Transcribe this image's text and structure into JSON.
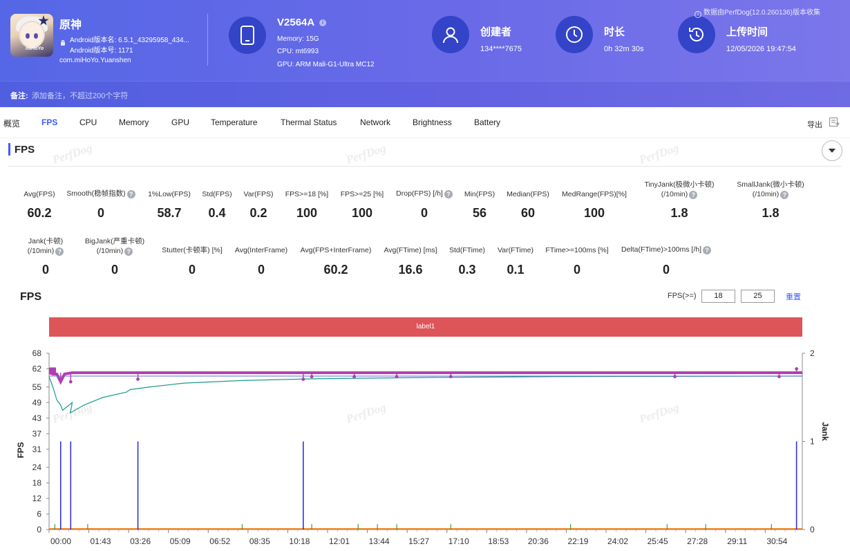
{
  "app": {
    "name": "原神",
    "android_version_name": "Android版本名: 6.5.1_43295958_434...",
    "android_version_code": "Android版本号: 1171",
    "package": "com.miHoYo.Yuanshen",
    "icon_brand": "miHoYo"
  },
  "device": {
    "name": "V2564A",
    "memory": "Memory: 15G",
    "cpu": "CPU: mt6993",
    "gpu": "GPU: ARM Mali-G1-Ultra MC12"
  },
  "creator": {
    "label": "创建者",
    "value": "134****7675"
  },
  "duration": {
    "label": "时长",
    "value": "0h 32m 30s"
  },
  "upload": {
    "label": "上传时间",
    "value": "12/05/2026 19:47:54"
  },
  "source_note": "数据由PerfDog(12.0.260136)版本收集",
  "remark": {
    "label": "备注:",
    "placeholder": "添加备注，不超过200个字符"
  },
  "tabs": [
    "概览",
    "FPS",
    "CPU",
    "Memory",
    "GPU",
    "Temperature",
    "Thermal Status",
    "Network",
    "Brightness",
    "Battery"
  ],
  "active_tab": "FPS",
  "export_label": "导出",
  "section_title": "FPS",
  "watermark": "PerfDog",
  "metrics_row1": [
    {
      "label": "Avg(FPS)",
      "value": "60.2"
    },
    {
      "label": "Smooth(稳帧指数)",
      "value": "0"
    },
    {
      "label": "1%Low(FPS)",
      "value": "58.7"
    },
    {
      "label": "Std(FPS)",
      "value": "0.4"
    },
    {
      "label": "Var(FPS)",
      "value": "0.2"
    },
    {
      "label": "FPS>=18 [%]",
      "value": "100"
    },
    {
      "label": "FPS>=25 [%]",
      "value": "100"
    },
    {
      "label": "Drop(FPS) [/h]",
      "value": "0"
    },
    {
      "label": "Min(FPS)",
      "value": "56"
    },
    {
      "label": "Median(FPS)",
      "value": "60"
    },
    {
      "label": "MedRange(FPS)[%]",
      "value": "100"
    },
    {
      "label": "TinyJank(极微小卡顿)",
      "label2": "(/10min)",
      "value": "1.8"
    },
    {
      "label": "SmallJank(微小卡顿)",
      "label2": "(/10min)",
      "value": "1.8"
    }
  ],
  "metrics_row2": [
    {
      "label": "Jank(卡顿)",
      "label2": "(/10min)",
      "value": "0"
    },
    {
      "label": "BigJank(严重卡顿)",
      "label2": "(/10min)",
      "value": "0"
    },
    {
      "label": "Stutter(卡顿率) [%]",
      "value": "0"
    },
    {
      "label": "Avg(InterFrame)",
      "value": "0"
    },
    {
      "label": "Avg(FPS+InterFrame)",
      "value": "60.2"
    },
    {
      "label": "Avg(FTime) [ms]",
      "value": "16.6"
    },
    {
      "label": "Std(FTime)",
      "value": "0.3"
    },
    {
      "label": "Var(FTime)",
      "value": "0.1"
    },
    {
      "label": "FTime>=100ms [%]",
      "value": "0"
    },
    {
      "label": "Delta(FTime)>100ms [/h]",
      "value": "0"
    }
  ],
  "chart_controls": {
    "title": "FPS",
    "threshold_label": "FPS(>=)",
    "threshold1": "18",
    "threshold2": "25",
    "reset_label": "重置",
    "label_band": "label1"
  },
  "colors": {
    "fps": "#b03fb0",
    "avg_fps": "#1a9a8a",
    "jank": "#3030e0",
    "small_jank": "#2fa02f",
    "baseline": "#f08020",
    "label_band": "#dd5559"
  },
  "chart_data": {
    "type": "line",
    "y_label": "FPS",
    "y2_label": "Jank",
    "y_ticks": [
      0,
      6,
      12,
      18,
      24,
      31,
      37,
      43,
      49,
      55,
      62,
      68
    ],
    "y_range": [
      0,
      68
    ],
    "y2_ticks": [
      0,
      1,
      2
    ],
    "y2_range": [
      0,
      2
    ],
    "x_range_seconds": [
      0,
      1950
    ],
    "x_tick_labels": [
      "00:00",
      "01:43",
      "03:26",
      "05:09",
      "06:52",
      "08:35",
      "10:18",
      "12:01",
      "13:44",
      "15:27",
      "17:10",
      "18:53",
      "20:36",
      "22:19",
      "24:02",
      "25:45",
      "27:28",
      "29:11",
      "30:54"
    ],
    "series": [
      {
        "key": "fps",
        "x_seconds": [
          0,
          10,
          20,
          30,
          40,
          60,
          90,
          120,
          200,
          400,
          700,
          1000,
          1300,
          1600,
          1900,
          1950
        ],
        "values": [
          60.5,
          60,
          60,
          57,
          60,
          60.5,
          60.5,
          60.5,
          60.5,
          60.5,
          60.5,
          60.5,
          60.5,
          60.5,
          60.5,
          60.5
        ]
      },
      {
        "key": "avg_fps",
        "x_seconds": [
          0,
          10,
          20,
          30,
          35,
          60,
          55,
          90,
          140,
          200,
          210,
          260,
          350,
          500,
          700,
          1000,
          1300,
          1600,
          1950
        ],
        "values": [
          59,
          55,
          50,
          48,
          46,
          49,
          45,
          48,
          51,
          53,
          54,
          55,
          56.5,
          57.5,
          58.2,
          58.7,
          59,
          59.1,
          59.2
        ]
      },
      {
        "key": "jank",
        "x_seconds": [
          30,
          56,
          230,
          658,
          1935
        ],
        "values": [
          1,
          1,
          1,
          1,
          1
        ]
      },
      {
        "key": "small_jank",
        "x_seconds": [
          15,
          30,
          100,
          230,
          500,
          680,
          800,
          850,
          900,
          1040,
          1350,
          1600,
          1700,
          1870
        ],
        "values": [
          0.03,
          0.03,
          0.03,
          0.03,
          0.03,
          0.03,
          0.03,
          0.03,
          0.03,
          0.03,
          0.03,
          0.03,
          0.03,
          0.03
        ]
      }
    ],
    "fps_dips": [
      {
        "x_seconds": 30,
        "value": 58
      },
      {
        "x_seconds": 56,
        "value": 57
      },
      {
        "x_seconds": 230,
        "value": 58
      },
      {
        "x_seconds": 658,
        "value": 58
      },
      {
        "x_seconds": 680,
        "value": 59
      },
      {
        "x_seconds": 790,
        "value": 59
      },
      {
        "x_seconds": 900,
        "value": 59
      },
      {
        "x_seconds": 1040,
        "value": 59
      },
      {
        "x_seconds": 1620,
        "value": 59
      },
      {
        "x_seconds": 1890,
        "value": 59
      },
      {
        "x_seconds": 1935,
        "value": 62
      }
    ]
  }
}
